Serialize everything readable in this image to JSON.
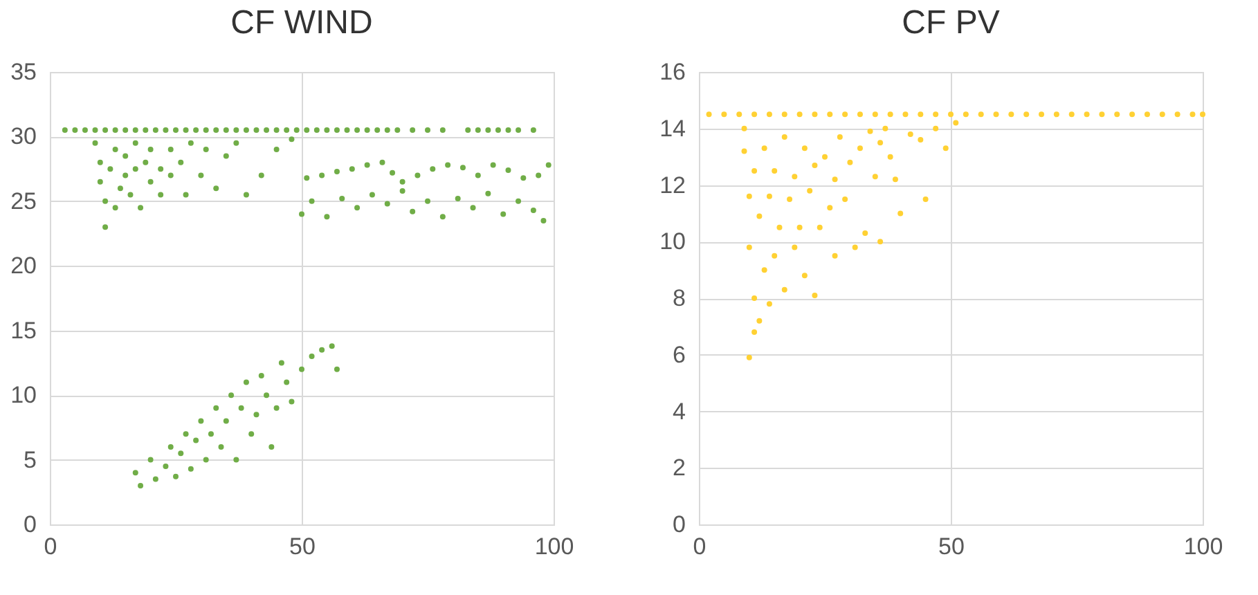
{
  "chart_data": [
    {
      "type": "scatter",
      "title": "CF WIND",
      "xlim": [
        0,
        100
      ],
      "xticks": [
        0,
        50,
        100
      ],
      "ylim": [
        0,
        35
      ],
      "yticks": [
        0,
        5,
        10,
        15,
        20,
        25,
        30,
        35
      ],
      "grid": true,
      "marker": "circle",
      "series": [
        {
          "color": "#70ad47",
          "x": [
            3,
            5,
            7,
            9,
            11,
            13,
            15,
            17,
            19,
            21,
            23,
            25,
            27,
            29,
            31,
            33,
            35,
            37,
            39,
            41,
            43,
            45,
            47,
            49,
            51,
            53,
            55,
            57,
            59,
            61,
            63,
            65,
            67,
            69,
            72,
            75,
            78,
            83,
            85,
            87,
            89,
            91,
            93,
            96,
            9,
            10,
            10,
            11,
            11,
            12,
            13,
            13,
            14,
            15,
            15,
            16,
            17,
            17,
            18,
            19,
            20,
            20,
            22,
            22,
            24,
            24,
            26,
            27,
            28,
            30,
            31,
            33,
            35,
            37,
            39,
            42,
            45,
            48,
            51,
            54,
            57,
            60,
            63,
            66,
            68,
            70,
            73,
            76,
            79,
            82,
            85,
            88,
            91,
            94,
            97,
            99,
            50,
            52,
            55,
            58,
            61,
            64,
            67,
            70,
            72,
            75,
            78,
            81,
            84,
            87,
            90,
            93,
            96,
            98,
            17,
            18,
            20,
            21,
            23,
            24,
            25,
            26,
            27,
            28,
            29,
            30,
            31,
            32,
            33,
            34,
            35,
            36,
            37,
            38,
            39,
            40,
            41,
            42,
            43,
            44,
            45,
            46,
            47,
            48,
            50,
            52,
            54,
            56,
            57
          ],
          "values": [
            30.5,
            30.5,
            30.5,
            30.5,
            30.5,
            30.5,
            30.5,
            30.5,
            30.5,
            30.5,
            30.5,
            30.5,
            30.5,
            30.5,
            30.5,
            30.5,
            30.5,
            30.5,
            30.5,
            30.5,
            30.5,
            30.5,
            30.5,
            30.5,
            30.5,
            30.5,
            30.5,
            30.5,
            30.5,
            30.5,
            30.5,
            30.5,
            30.5,
            30.5,
            30.5,
            30.5,
            30.5,
            30.5,
            30.5,
            30.5,
            30.5,
            30.5,
            30.5,
            30.5,
            29.5,
            28,
            26.5,
            25,
            23,
            27.5,
            29,
            24.5,
            26,
            28.5,
            27,
            25.5,
            29.5,
            27.5,
            24.5,
            28,
            26.5,
            29,
            27.5,
            25.5,
            29,
            27,
            28,
            25.5,
            29.5,
            27,
            29,
            26,
            28.5,
            29.5,
            25.5,
            27,
            29,
            29.8,
            26.8,
            27,
            27.3,
            27.5,
            27.8,
            28,
            27.2,
            26.5,
            27,
            27.5,
            27.8,
            27.6,
            27,
            27.8,
            27.4,
            26.8,
            27,
            27.8,
            24,
            25,
            23.8,
            25.2,
            24.5,
            25.5,
            24.8,
            25.8,
            24.2,
            25,
            23.8,
            25.2,
            24.5,
            25.6,
            24,
            25,
            24.3,
            23.5,
            4,
            3,
            5,
            3.5,
            4.5,
            6,
            3.7,
            5.5,
            7,
            4.3,
            6.5,
            8,
            5,
            7,
            9,
            6,
            8,
            10,
            5,
            9,
            11,
            7,
            8.5,
            11.5,
            10,
            6,
            9,
            12.5,
            11,
            9.5,
            12,
            13,
            13.5,
            13.8,
            12
          ]
        }
      ]
    },
    {
      "type": "scatter",
      "title": "CF PV",
      "xlim": [
        0,
        100
      ],
      "xticks": [
        0,
        50,
        100
      ],
      "ylim": [
        0,
        16
      ],
      "yticks": [
        0,
        2,
        4,
        6,
        8,
        10,
        12,
        14,
        16
      ],
      "grid": true,
      "marker": "circle",
      "series": [
        {
          "color": "#ffd133",
          "x": [
            2,
            5,
            8,
            11,
            14,
            17,
            20,
            23,
            26,
            29,
            32,
            35,
            38,
            41,
            44,
            47,
            50,
            53,
            56,
            59,
            62,
            65,
            68,
            71,
            74,
            77,
            80,
            83,
            86,
            89,
            92,
            95,
            98,
            100,
            9,
            9,
            10,
            10,
            10,
            11,
            11,
            11,
            12,
            12,
            13,
            13,
            14,
            14,
            15,
            15,
            16,
            17,
            17,
            18,
            19,
            19,
            20,
            21,
            21,
            22,
            23,
            23,
            24,
            25,
            26,
            27,
            27,
            28,
            29,
            30,
            31,
            32,
            33,
            34,
            35,
            36,
            36,
            37,
            38,
            39,
            40,
            42,
            44,
            45,
            47,
            49,
            51
          ],
          "values": [
            14.5,
            14.5,
            14.5,
            14.5,
            14.5,
            14.5,
            14.5,
            14.5,
            14.5,
            14.5,
            14.5,
            14.5,
            14.5,
            14.5,
            14.5,
            14.5,
            14.5,
            14.5,
            14.5,
            14.5,
            14.5,
            14.5,
            14.5,
            14.5,
            14.5,
            14.5,
            14.5,
            14.5,
            14.5,
            14.5,
            14.5,
            14.5,
            14.5,
            14.5,
            14,
            13.2,
            11.6,
            9.8,
            5.9,
            12.5,
            8,
            6.8,
            10.9,
            7.2,
            13.3,
            9,
            11.6,
            7.8,
            12.5,
            9.5,
            10.5,
            13.7,
            8.3,
            11.5,
            12.3,
            9.8,
            10.5,
            13.3,
            8.8,
            11.8,
            12.7,
            8.1,
            10.5,
            13,
            11.2,
            12.2,
            9.5,
            13.7,
            11.5,
            12.8,
            9.8,
            13.3,
            10.3,
            13.9,
            12.3,
            13.5,
            10,
            14,
            13,
            12.2,
            11,
            13.8,
            13.6,
            11.5,
            14,
            13.3,
            14.2
          ]
        }
      ]
    }
  ]
}
